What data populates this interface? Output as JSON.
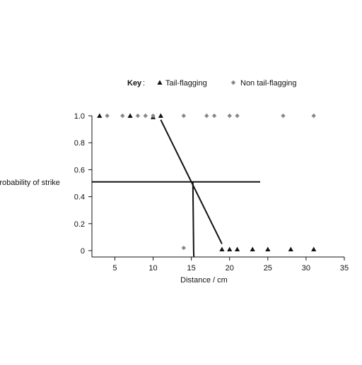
{
  "chart_data": {
    "type": "scatter",
    "title": "",
    "xlabel": "Distance / cm",
    "ylabel": "Probability of strike",
    "xlim": [
      2,
      35
    ],
    "ylim": [
      0,
      1.0
    ],
    "x_ticks": [
      5,
      10,
      15,
      20,
      25,
      30,
      35
    ],
    "y_ticks": [
      0,
      0.2,
      0.4,
      0.6,
      0.8,
      1.0
    ],
    "y_tick_labels": [
      "0",
      "0.2",
      "0.4",
      "0.6",
      "0.8",
      "1.0"
    ],
    "legend": {
      "title": "Key",
      "placement": "top",
      "entries": [
        {
          "label": "Tail-flagging",
          "marker": "triangle",
          "color": "#111111"
        },
        {
          "label": "Non tail-flagging",
          "marker": "diamond",
          "color": "#888888"
        }
      ]
    },
    "series": [
      {
        "name": "Tail-flagging",
        "marker": "triangle",
        "color": "#111111",
        "points": [
          [
            3,
            1.0
          ],
          [
            7,
            1.0
          ],
          [
            10,
            0.99
          ],
          [
            11,
            1.0
          ],
          [
            19,
            0.01
          ],
          [
            20,
            0.01
          ],
          [
            21,
            0.01
          ],
          [
            23,
            0.01
          ],
          [
            25,
            0.01
          ],
          [
            28,
            0.01
          ],
          [
            31,
            0.01
          ]
        ]
      },
      {
        "name": "Non tail-flagging",
        "marker": "diamond",
        "color": "#888888",
        "points": [
          [
            4,
            1.0
          ],
          [
            6,
            1.0
          ],
          [
            8,
            1.0
          ],
          [
            9,
            1.0
          ],
          [
            10,
            1.0
          ],
          [
            14,
            1.0
          ],
          [
            17,
            1.0
          ],
          [
            18,
            1.0
          ],
          [
            20,
            1.0
          ],
          [
            21,
            1.0
          ],
          [
            27,
            1.0
          ],
          [
            31,
            1.0
          ],
          [
            14,
            0.02
          ]
        ]
      }
    ],
    "lines": [
      {
        "name": "tail-flagging-fit",
        "points": [
          [
            11,
            0.97
          ],
          [
            19,
            0.05
          ]
        ]
      },
      {
        "name": "non-tail-flagging-fit",
        "points": [
          [
            15.2,
            0.51
          ],
          [
            15.3,
            0.0
          ]
        ]
      },
      {
        "name": "half-probability-reference",
        "points": [
          [
            2,
            0.51
          ],
          [
            24,
            0.51
          ]
        ]
      }
    ],
    "grid": false
  }
}
